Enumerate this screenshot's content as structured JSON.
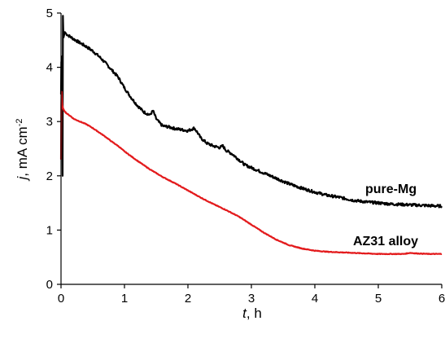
{
  "chart_data": {
    "type": "line",
    "xlabel": {
      "italic": "t",
      "rest": ", h"
    },
    "ylabel": {
      "italic": "j",
      "rest": ", mA cm",
      "sup": "-2"
    },
    "xlim": [
      0,
      6
    ],
    "ylim": [
      0,
      5
    ],
    "xticks": [
      "0",
      "1",
      "2",
      "3",
      "4",
      "5",
      "6"
    ],
    "yticks": [
      "0",
      "1",
      "2",
      "3",
      "4",
      "5"
    ],
    "grid": false,
    "series": [
      {
        "name": "pure-Mg",
        "color": "#000000",
        "x": [
          0.0,
          0.005,
          0.01,
          0.015,
          0.02,
          0.025,
          0.03,
          0.035,
          0.04,
          0.05,
          0.06,
          0.08,
          0.1,
          0.15,
          0.2,
          0.3,
          0.4,
          0.5,
          0.6,
          0.7,
          0.8,
          0.9,
          1.0,
          1.1,
          1.2,
          1.3,
          1.4,
          1.45,
          1.5,
          1.55,
          1.6,
          1.7,
          1.8,
          1.9,
          2.0,
          2.1,
          2.15,
          2.2,
          2.3,
          2.4,
          2.5,
          2.55,
          2.6,
          2.7,
          2.8,
          2.9,
          3.0,
          3.2,
          3.4,
          3.6,
          3.8,
          4.0,
          4.2,
          4.4,
          4.6,
          4.8,
          5.0,
          5.2,
          5.4,
          5.6,
          5.8,
          6.0
        ],
        "y": [
          3.5,
          4.1,
          3.9,
          4.2,
          3.0,
          2.0,
          4.95,
          4.7,
          4.55,
          4.6,
          4.65,
          4.62,
          4.6,
          4.56,
          4.52,
          4.45,
          4.38,
          4.3,
          4.2,
          4.08,
          3.95,
          3.82,
          3.62,
          3.45,
          3.3,
          3.18,
          3.12,
          3.2,
          3.05,
          2.98,
          2.92,
          2.9,
          2.87,
          2.85,
          2.83,
          2.88,
          2.8,
          2.7,
          2.6,
          2.55,
          2.52,
          2.55,
          2.47,
          2.4,
          2.3,
          2.2,
          2.15,
          2.05,
          1.95,
          1.85,
          1.77,
          1.7,
          1.64,
          1.6,
          1.55,
          1.52,
          1.5,
          1.48,
          1.47,
          1.46,
          1.45,
          1.44
        ]
      },
      {
        "name": "AZ31 alloy",
        "color": "#e31a1c",
        "x": [
          0.0,
          0.005,
          0.01,
          0.015,
          0.02,
          0.03,
          0.05,
          0.08,
          0.1,
          0.15,
          0.2,
          0.3,
          0.4,
          0.5,
          0.6,
          0.7,
          0.8,
          0.9,
          1.0,
          1.2,
          1.4,
          1.6,
          1.8,
          2.0,
          2.2,
          2.4,
          2.6,
          2.8,
          3.0,
          3.2,
          3.4,
          3.6,
          3.8,
          4.0,
          4.2,
          4.4,
          4.6,
          4.8,
          5.0,
          5.2,
          5.4,
          5.5,
          5.6,
          5.8,
          6.0
        ],
        "y": [
          2.3,
          3.3,
          3.55,
          3.4,
          3.3,
          3.25,
          3.2,
          3.16,
          3.14,
          3.1,
          3.05,
          3.0,
          2.95,
          2.88,
          2.8,
          2.72,
          2.63,
          2.55,
          2.45,
          2.28,
          2.12,
          1.98,
          1.86,
          1.73,
          1.6,
          1.48,
          1.37,
          1.25,
          1.1,
          0.95,
          0.82,
          0.72,
          0.66,
          0.62,
          0.6,
          0.59,
          0.58,
          0.57,
          0.56,
          0.56,
          0.56,
          0.58,
          0.57,
          0.56,
          0.56
        ]
      }
    ]
  }
}
